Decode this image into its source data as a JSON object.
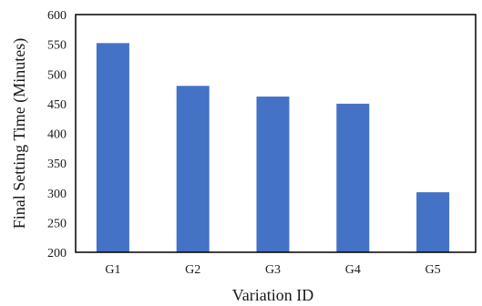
{
  "chart_data": {
    "type": "bar",
    "categories": [
      "G1",
      "G2",
      "G3",
      "G4",
      "G5"
    ],
    "values": [
      552,
      480,
      462,
      450,
      301
    ],
    "xlabel": "Variation ID",
    "ylabel": "Final Setting Time (Minutes)",
    "ylim": [
      200,
      600
    ],
    "yticks": [
      200,
      250,
      300,
      350,
      400,
      450,
      500,
      550,
      600
    ],
    "grid": false,
    "legend": "none",
    "bar_color": "#4472C4"
  }
}
